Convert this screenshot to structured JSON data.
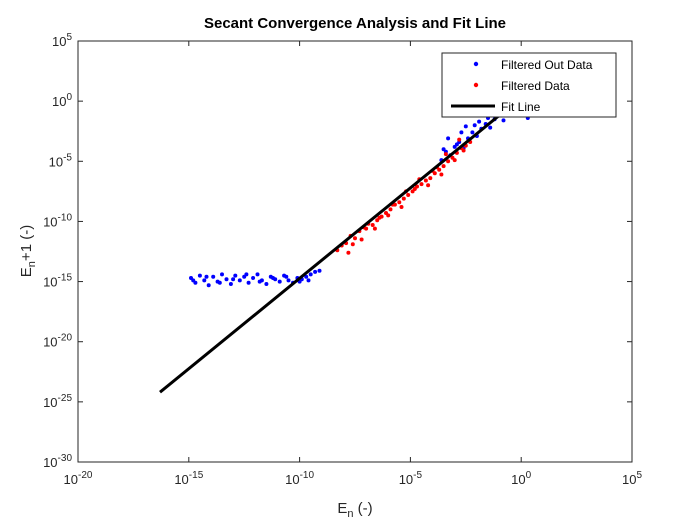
{
  "chart_data": {
    "type": "scatter",
    "title": "Secant Convergence Analysis and Fit Line",
    "xlabel": {
      "base": "E",
      "sub": "n",
      "suffix": " (-)"
    },
    "ylabel": {
      "base": "E",
      "sub": "n",
      "suffix": "+1 (-)"
    },
    "xscale": "log",
    "yscale": "log",
    "xlim_exp": [
      -20,
      5
    ],
    "ylim_exp": [
      -30,
      5
    ],
    "x_ticks": [
      {
        "base": "10",
        "exp": "-20",
        "e": -20
      },
      {
        "base": "10",
        "exp": "-15",
        "e": -15
      },
      {
        "base": "10",
        "exp": "-10",
        "e": -10
      },
      {
        "base": "10",
        "exp": "-5",
        "e": -5
      },
      {
        "base": "10",
        "exp": "0",
        "e": 0
      },
      {
        "base": "10",
        "exp": "5",
        "e": 5
      }
    ],
    "y_ticks": [
      {
        "base": "10",
        "exp": "-30",
        "e": -30
      },
      {
        "base": "10",
        "exp": "-25",
        "e": -25
      },
      {
        "base": "10",
        "exp": "-20",
        "e": -20
      },
      {
        "base": "10",
        "exp": "-15",
        "e": -15
      },
      {
        "base": "10",
        "exp": "-10",
        "e": -10
      },
      {
        "base": "10",
        "exp": "-5",
        "e": -5
      },
      {
        "base": "10",
        "exp": "0",
        "e": 0
      },
      {
        "base": "10",
        "exp": "5",
        "e": 5
      }
    ],
    "grid": false,
    "legend_position": "top-right",
    "series": [
      {
        "name": "Filtered Out Data",
        "kind": "points",
        "color": "#0000ff",
        "log10_points": [
          [
            -14.9,
            -14.7
          ],
          [
            -14.7,
            -15.1
          ],
          [
            -14.5,
            -14.5
          ],
          [
            -14.3,
            -14.9
          ],
          [
            -14.1,
            -15.3
          ],
          [
            -13.9,
            -14.6
          ],
          [
            -13.7,
            -15.0
          ],
          [
            -13.5,
            -14.4
          ],
          [
            -13.3,
            -14.8
          ],
          [
            -13.1,
            -15.2
          ],
          [
            -12.9,
            -14.5
          ],
          [
            -12.7,
            -14.9
          ],
          [
            -12.5,
            -14.6
          ],
          [
            -12.3,
            -15.1
          ],
          [
            -12.1,
            -14.7
          ],
          [
            -11.9,
            -14.4
          ],
          [
            -11.7,
            -14.9
          ],
          [
            -11.5,
            -15.2
          ],
          [
            -11.3,
            -14.6
          ],
          [
            -11.1,
            -14.8
          ],
          [
            -10.9,
            -15.0
          ],
          [
            -10.7,
            -14.5
          ],
          [
            -10.5,
            -14.9
          ],
          [
            -10.3,
            -15.1
          ],
          [
            -10.1,
            -14.7
          ],
          [
            -9.9,
            -14.8
          ],
          [
            -9.7,
            -14.6
          ],
          [
            -9.5,
            -14.4
          ],
          [
            -9.3,
            -14.2
          ],
          [
            -9.1,
            -14.1
          ],
          [
            -14.8,
            -14.9
          ],
          [
            -14.2,
            -14.6
          ],
          [
            -13.6,
            -15.1
          ],
          [
            -13.0,
            -14.8
          ],
          [
            -12.4,
            -14.4
          ],
          [
            -11.8,
            -15.0
          ],
          [
            -11.2,
            -14.7
          ],
          [
            -10.6,
            -14.6
          ],
          [
            -10.0,
            -15.0
          ],
          [
            -9.6,
            -14.9
          ],
          [
            -3.6,
            -4.9
          ],
          [
            -3.4,
            -4.2
          ],
          [
            -3.2,
            -4.5
          ],
          [
            -3.0,
            -3.8
          ],
          [
            -2.8,
            -3.4
          ],
          [
            -2.6,
            -3.9
          ],
          [
            -2.4,
            -3.1
          ],
          [
            -2.2,
            -2.6
          ],
          [
            -2.0,
            -2.9
          ],
          [
            -1.8,
            -2.3
          ],
          [
            -1.6,
            -1.9
          ],
          [
            -1.4,
            -2.2
          ],
          [
            -1.2,
            -1.5
          ],
          [
            -1.0,
            -1.2
          ],
          [
            -0.8,
            -1.6
          ],
          [
            -0.6,
            -0.9
          ],
          [
            -0.4,
            -0.7
          ],
          [
            -0.2,
            -0.8
          ],
          [
            0.0,
            -0.5
          ],
          [
            0.2,
            -0.9
          ],
          [
            0.3,
            -1.4
          ],
          [
            0.4,
            -0.6
          ],
          [
            -0.3,
            -1.1
          ],
          [
            -0.9,
            -0.8
          ],
          [
            -1.5,
            -1.4
          ],
          [
            -2.1,
            -2.0
          ],
          [
            -2.7,
            -2.6
          ],
          [
            -3.3,
            -3.1
          ],
          [
            -2.5,
            -2.1
          ],
          [
            -1.1,
            -0.9
          ],
          [
            0.35,
            -0.7
          ],
          [
            0.3,
            -1.0
          ],
          [
            -3.5,
            -4.0
          ],
          [
            -2.9,
            -3.6
          ],
          [
            -1.9,
            -1.7
          ],
          [
            -0.7,
            -0.5
          ]
        ]
      },
      {
        "name": "Filtered Data",
        "kind": "points",
        "color": "#ff0000",
        "log10_points": [
          [
            -8.3,
            -12.4
          ],
          [
            -8.1,
            -12.0
          ],
          [
            -7.9,
            -11.8
          ],
          [
            -7.7,
            -11.2
          ],
          [
            -7.5,
            -11.4
          ],
          [
            -7.3,
            -10.8
          ],
          [
            -7.1,
            -10.5
          ],
          [
            -6.9,
            -10.2
          ],
          [
            -6.7,
            -10.3
          ],
          [
            -6.5,
            -9.9
          ],
          [
            -6.3,
            -9.6
          ],
          [
            -6.1,
            -9.3
          ],
          [
            -5.9,
            -9.0
          ],
          [
            -5.7,
            -8.6
          ],
          [
            -5.5,
            -8.4
          ],
          [
            -5.3,
            -8.1
          ],
          [
            -5.1,
            -7.8
          ],
          [
            -4.9,
            -7.5
          ],
          [
            -4.7,
            -7.1
          ],
          [
            -4.5,
            -6.9
          ],
          [
            -4.3,
            -6.6
          ],
          [
            -4.1,
            -6.4
          ],
          [
            -3.9,
            -6.0
          ],
          [
            -3.7,
            -5.7
          ],
          [
            -3.5,
            -5.4
          ],
          [
            -3.3,
            -5.0
          ],
          [
            -3.1,
            -4.7
          ],
          [
            -2.9,
            -4.3
          ],
          [
            -2.7,
            -3.9
          ],
          [
            -2.5,
            -3.7
          ],
          [
            -2.3,
            -3.4
          ],
          [
            -7.8,
            -12.6
          ],
          [
            -7.2,
            -11.5
          ],
          [
            -6.6,
            -10.6
          ],
          [
            -6.0,
            -9.5
          ],
          [
            -5.4,
            -8.8
          ],
          [
            -4.8,
            -7.3
          ],
          [
            -4.2,
            -7.0
          ],
          [
            -3.6,
            -6.1
          ],
          [
            -3.0,
            -4.9
          ],
          [
            -2.6,
            -4.1
          ],
          [
            -3.4,
            -4.4
          ],
          [
            -4.0,
            -5.8
          ],
          [
            -5.2,
            -7.5
          ],
          [
            -6.4,
            -9.7
          ],
          [
            -7.6,
            -11.9
          ],
          [
            -2.8,
            -3.2
          ],
          [
            -3.8,
            -5.5
          ],
          [
            -4.6,
            -6.5
          ],
          [
            -5.8,
            -8.6
          ],
          [
            -7.0,
            -10.6
          ]
        ]
      },
      {
        "name": "Fit Line",
        "kind": "line",
        "color": "#000000",
        "log10_points": [
          [
            -16.3,
            -24.2
          ],
          [
            0.2,
            0.6
          ]
        ]
      }
    ]
  }
}
